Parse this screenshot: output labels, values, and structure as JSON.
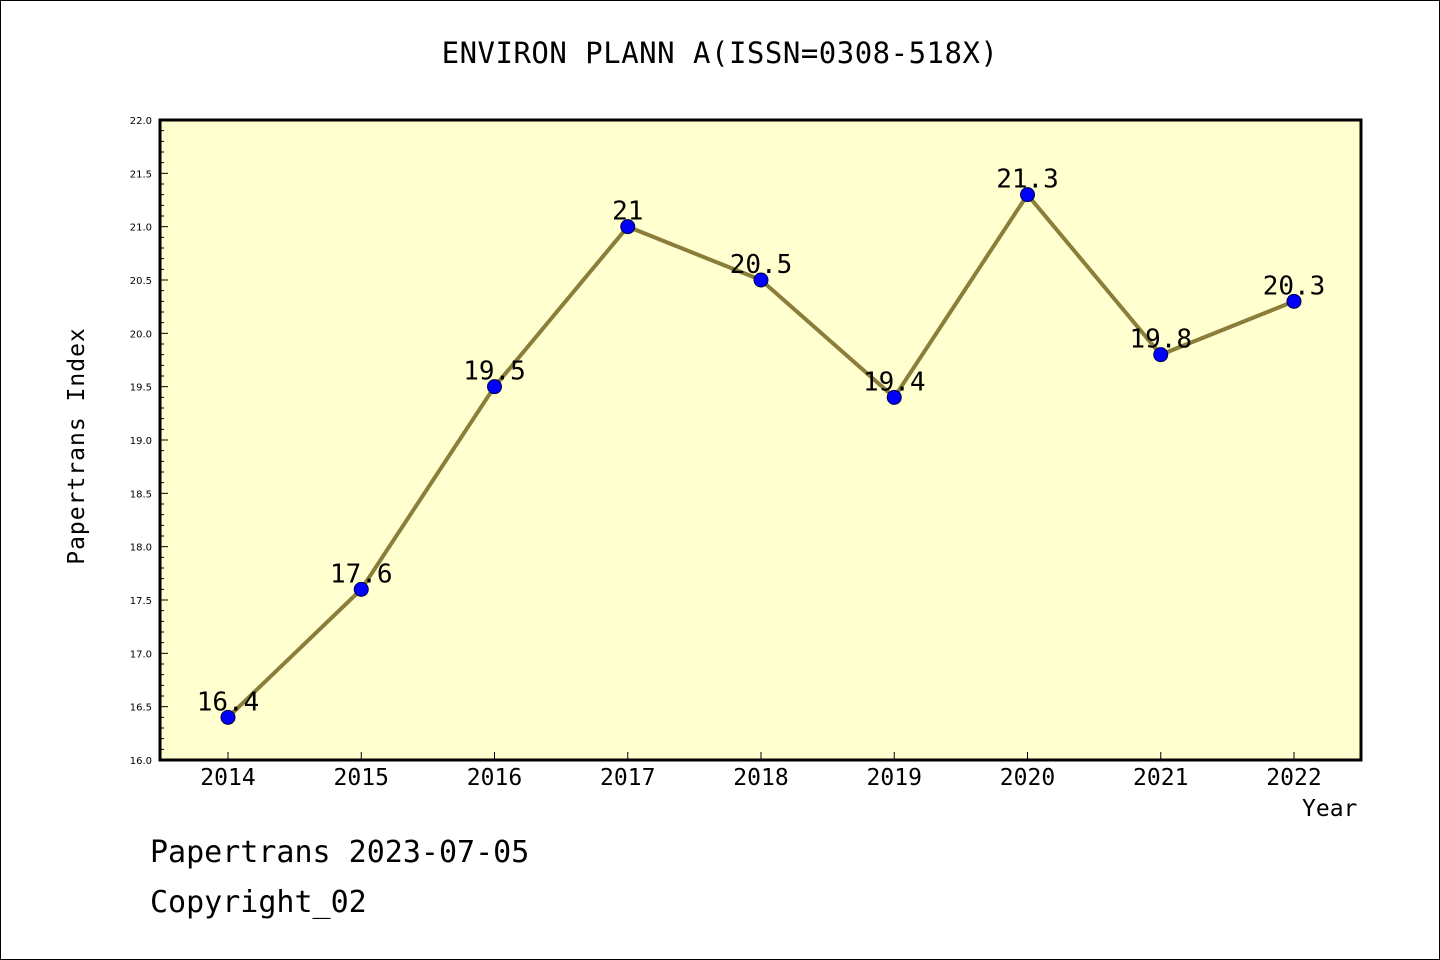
{
  "chart_data": {
    "type": "line",
    "title": "ENVIRON PLANN A(ISSN=0308-518X)",
    "xlabel": "Year",
    "ylabel": "Papertrans Index",
    "x": [
      "2014",
      "2015",
      "2016",
      "2017",
      "2018",
      "2019",
      "2020",
      "2021",
      "2022"
    ],
    "values": [
      16.4,
      17.6,
      19.5,
      21,
      20.5,
      19.4,
      21.3,
      19.8,
      20.3
    ],
    "data_labels": [
      "16.4",
      "17.6",
      "19.5",
      "21",
      "20.5",
      "19.4",
      "21.3",
      "19.8",
      "20.3"
    ],
    "ylim": [
      16.0,
      22.0
    ],
    "yticks": [
      "16.0",
      "16.5",
      "17.0",
      "17.5",
      "18.0",
      "18.5",
      "19.0",
      "19.5",
      "20.0",
      "20.5",
      "21.0",
      "21.5",
      "22.0"
    ],
    "line_color": "#8b7d3a",
    "marker_color": "#0000ff",
    "plot_background": "#ffffd0",
    "grid": false,
    "legend": "none"
  },
  "footer": {
    "line1": "Papertrans 2023-07-05",
    "line2": "Copyright_02"
  }
}
